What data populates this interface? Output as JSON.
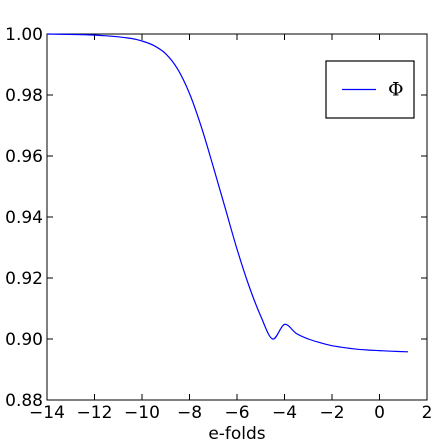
{
  "chart_data": {
    "type": "line",
    "title": "",
    "xlabel": "e-folds",
    "ylabel": "",
    "xlim": [
      -14,
      2
    ],
    "ylim": [
      0.88,
      1.0
    ],
    "xticks": [
      -14,
      -12,
      -10,
      -8,
      -6,
      -4,
      -2,
      0,
      2
    ],
    "xtick_labels": [
      "−14",
      "−12",
      "−10",
      "−8",
      "−6",
      "−4",
      "−2",
      "0",
      "2"
    ],
    "yticks": [
      0.88,
      0.9,
      0.92,
      0.94,
      0.96,
      0.98,
      1.0
    ],
    "ytick_labels": [
      "0.88",
      "0.90",
      "0.92",
      "0.94",
      "0.96",
      "0.98",
      "1.00"
    ],
    "grid": false,
    "legend_position": "top-right",
    "series": [
      {
        "name": "Φ",
        "color": "#0000ff",
        "x": [
          -14.0,
          -12.5,
          -11.5,
          -10.5,
          -10.0,
          -9.5,
          -9.0,
          -8.5,
          -8.0,
          -7.5,
          -7.0,
          -6.5,
          -6.0,
          -5.5,
          -5.0,
          -4.5,
          -4.0,
          -3.5,
          -3.0,
          -2.5,
          -2.0,
          -1.5,
          -1.0,
          -0.5,
          0.0,
          0.5,
          1.2
        ],
        "y": [
          1.0,
          0.9998,
          0.9994,
          0.9986,
          0.9977,
          0.9962,
          0.9935,
          0.9885,
          0.9805,
          0.9695,
          0.9565,
          0.943,
          0.9295,
          0.9175,
          0.9075,
          0.9,
          0.9048,
          0.9018,
          0.9,
          0.8988,
          0.8978,
          0.8972,
          0.8967,
          0.8964,
          0.8962,
          0.896,
          0.8958
        ]
      }
    ]
  }
}
